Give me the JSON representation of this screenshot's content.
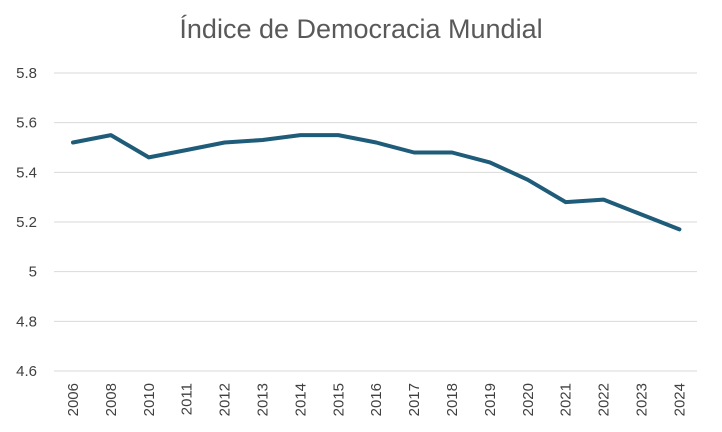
{
  "chart_data": {
    "type": "line",
    "title": "Índice de Democracia Mundial",
    "xlabel": "",
    "ylabel": "",
    "categories": [
      "2006",
      "2008",
      "2010",
      "2011",
      "2012",
      "2013",
      "2014",
      "2015",
      "2016",
      "2017",
      "2018",
      "2019",
      "2020",
      "2021",
      "2022",
      "2023",
      "2024"
    ],
    "series": [
      {
        "values": [
          5.52,
          5.55,
          5.46,
          5.49,
          5.52,
          5.53,
          5.55,
          5.55,
          5.52,
          5.48,
          5.48,
          5.44,
          5.37,
          5.28,
          5.29,
          5.23,
          5.17
        ]
      }
    ],
    "ylim": [
      4.6,
      5.8
    ],
    "yticks": [
      "4.6",
      "4.8",
      "5",
      "5.2",
      "5.4",
      "5.6",
      "5.8"
    ],
    "grid": "horizontal",
    "legend": "none",
    "colors": {
      "line": "#1f5c7a",
      "grid": "#d9d9d9",
      "title": "#595959",
      "tick_text": "#404040"
    }
  }
}
